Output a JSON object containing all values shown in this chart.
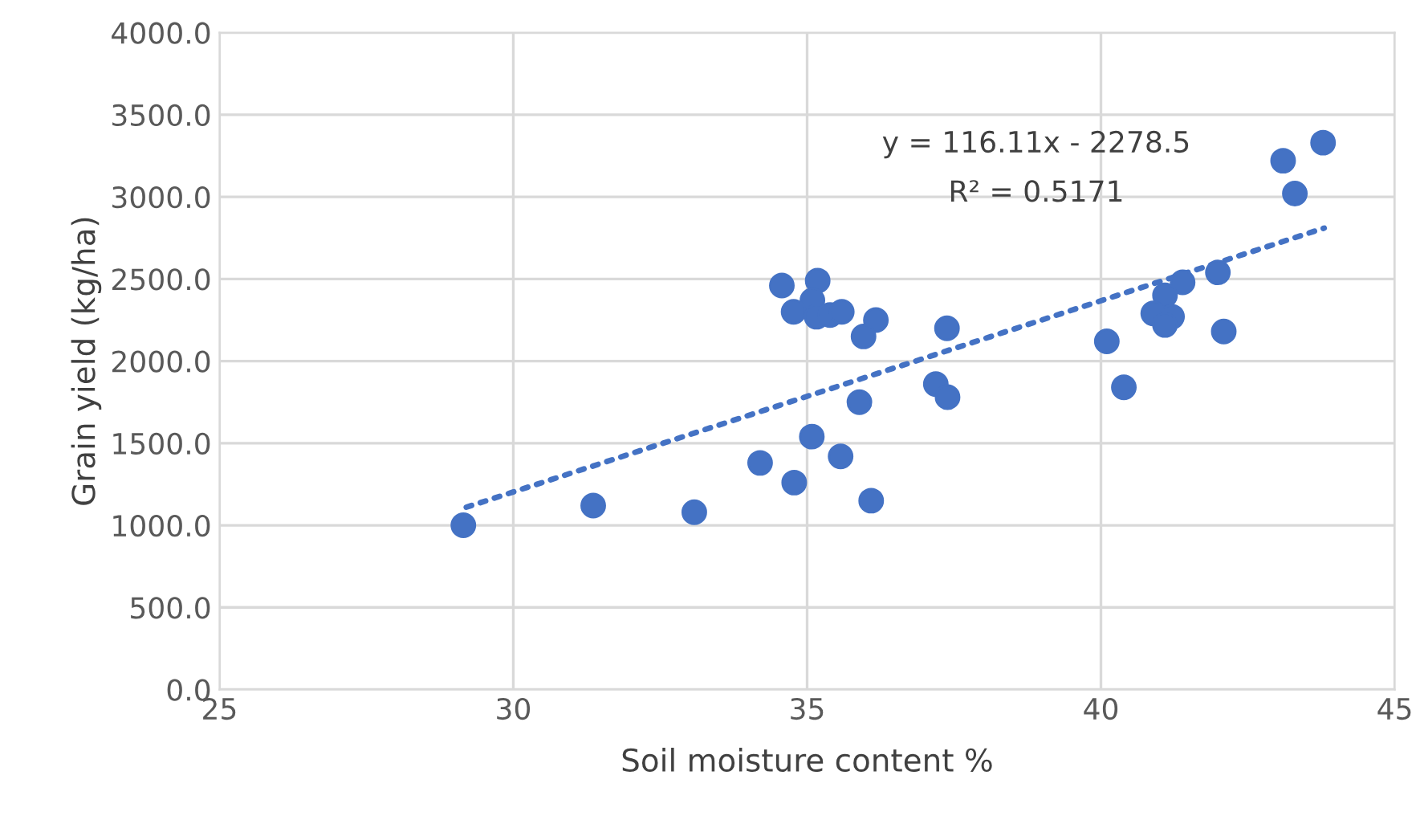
{
  "chart_data": {
    "type": "scatter",
    "xlabel": "Soil moisture content %",
    "ylabel": "Grain yield (kg/ha)",
    "xlim": [
      25,
      45
    ],
    "xticks": [
      25,
      30,
      35,
      40,
      45
    ],
    "ylim": [
      0,
      4000
    ],
    "yticks": [
      {
        "value": 0,
        "label": "0.0"
      },
      {
        "value": 500,
        "label": "500.0"
      },
      {
        "value": 1000,
        "label": "1000.0"
      },
      {
        "value": 1500,
        "label": "1500.0"
      },
      {
        "value": 2000,
        "label": "2000.0"
      },
      {
        "value": 2500,
        "label": "2500.0"
      },
      {
        "value": 3000,
        "label": "3000.0"
      },
      {
        "value": 3500,
        "label": "3500.0"
      },
      {
        "value": 4000,
        "label": "4000.0"
      }
    ],
    "grid": true,
    "marker": "circle",
    "series": [
      {
        "color": "#4472c4",
        "x": [
          29.15,
          31.36,
          33.08,
          34.2,
          34.57,
          35.18,
          35.09,
          34.77,
          35.16,
          35.39,
          35.59,
          36.17,
          35.96,
          37.38,
          37.19,
          37.39,
          35.89,
          35.08,
          35.57,
          34.78,
          36.09,
          43.78,
          43.1,
          43.3,
          41.99,
          41.39,
          41.09,
          40.89,
          41.21,
          41.09,
          42.09,
          40.1,
          40.39
        ],
        "values": [
          1000,
          1120,
          1080,
          1380,
          2460,
          2490,
          2370,
          2300,
          2270,
          2280,
          2300,
          2250,
          2150,
          2200,
          1860,
          1780,
          1750,
          1540,
          1420,
          1260,
          1150,
          3330,
          3220,
          3020,
          2540,
          2480,
          2400,
          2290,
          2270,
          2220,
          2180,
          2120,
          1840
        ]
      },
      {
        "type": "line",
        "color": "#4472c4",
        "line_style": "dotted",
        "marker": "none",
        "x": [
          29.2,
          43.8
        ],
        "values": [
          1110,
          2810
        ]
      }
    ],
    "annotations": [
      "y = 116.11x - 2278.5",
      "R² = 0.5171"
    ]
  }
}
